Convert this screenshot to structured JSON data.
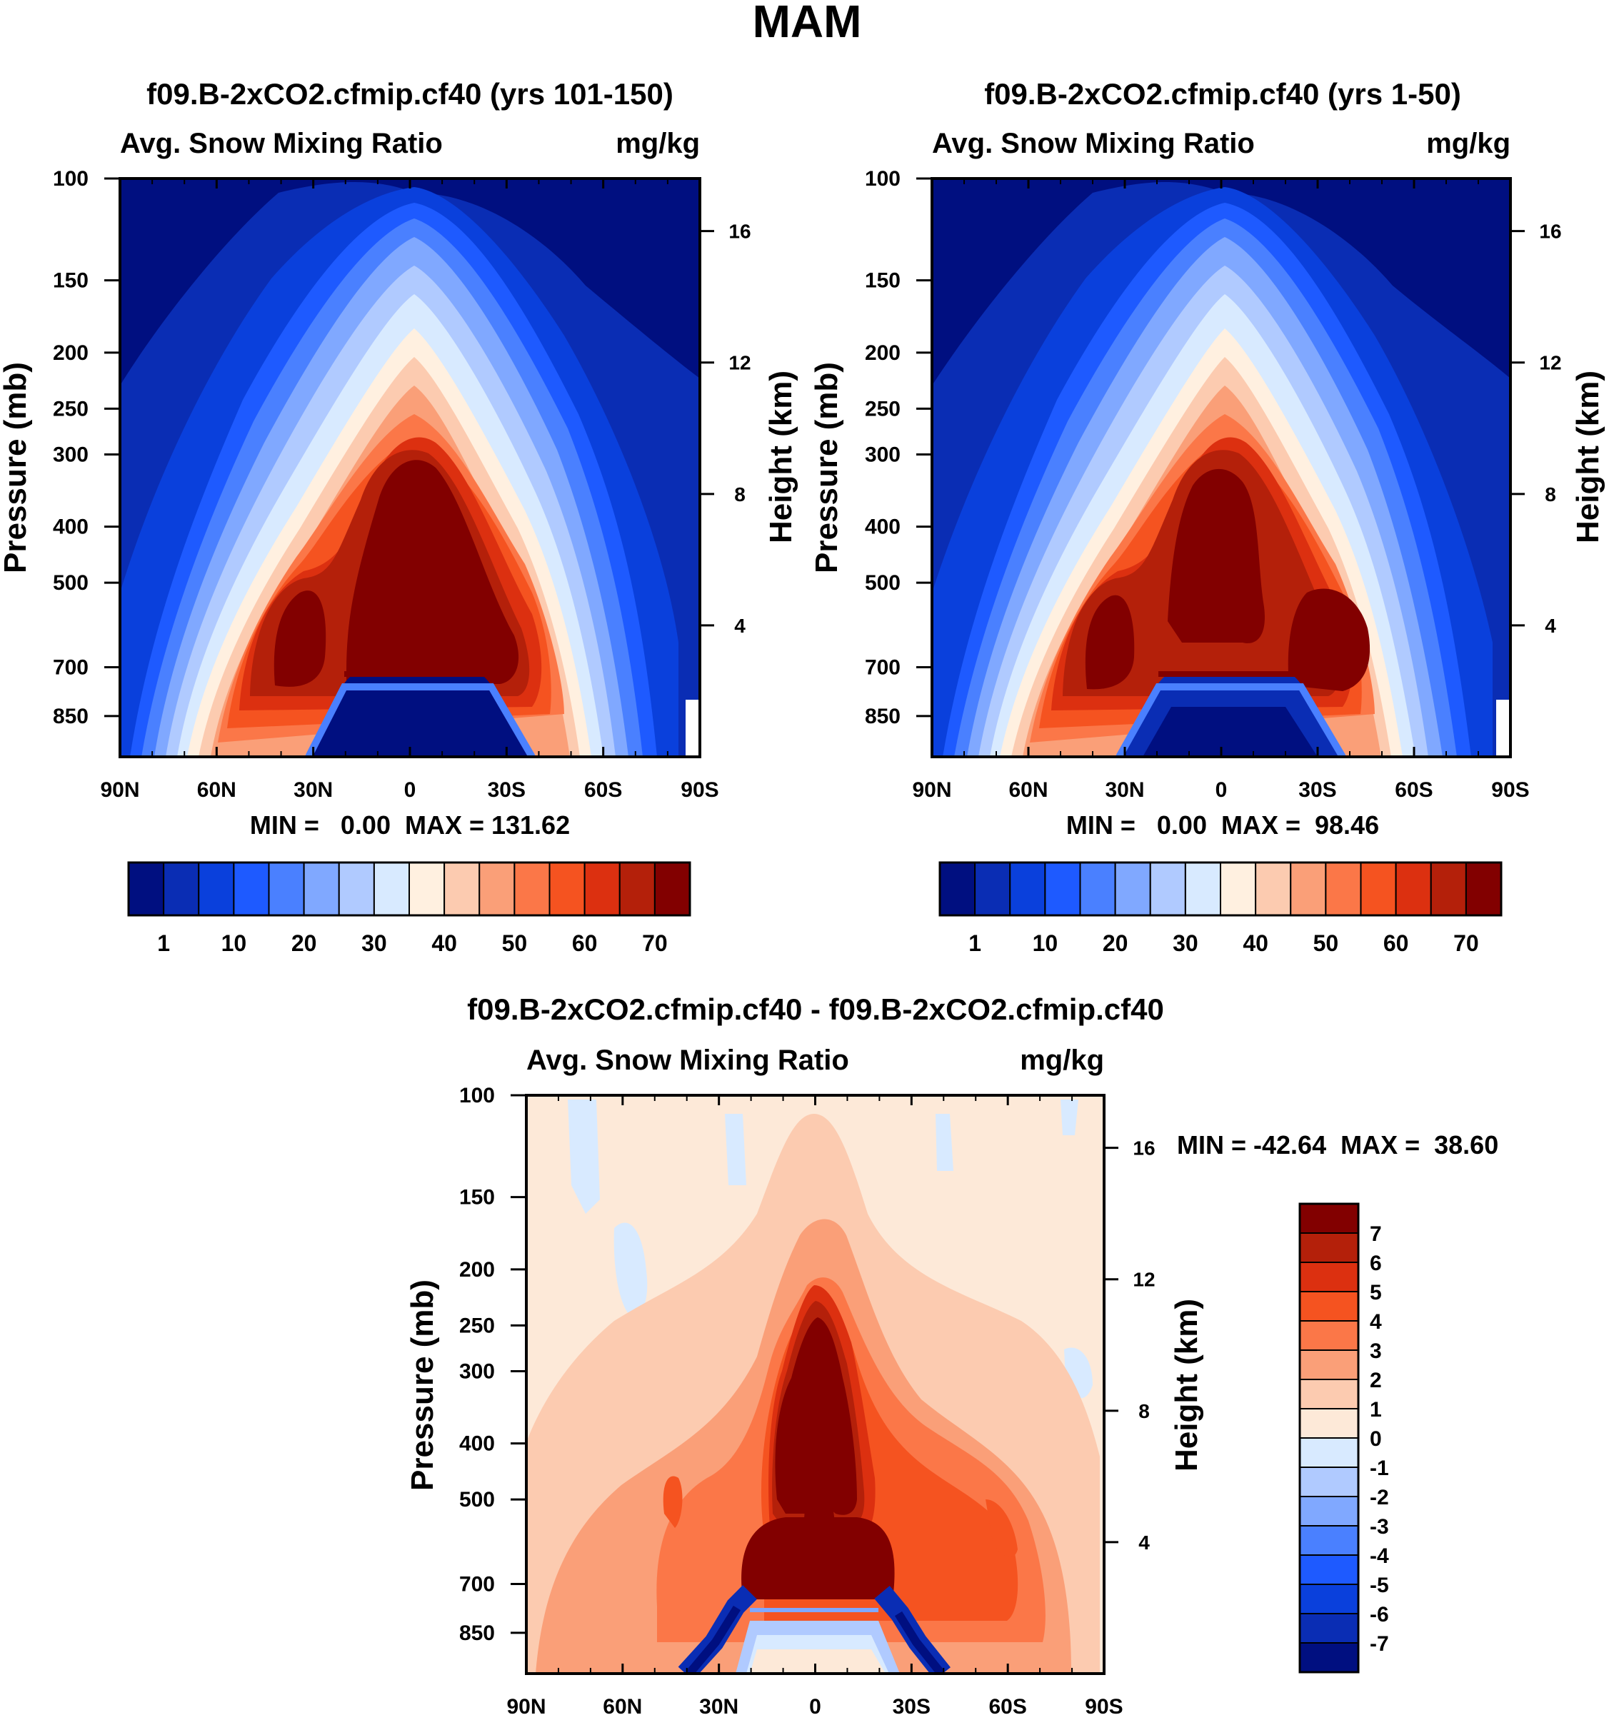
{
  "figure_title": "MAM",
  "colors": {
    "abs_scale": [
      "#000f80",
      "#0a2db4",
      "#0a40dc",
      "#1e5aff",
      "#4a80ff",
      "#80a8ff",
      "#b0caff",
      "#d8eaff",
      "#fff0e0",
      "#fccbb0",
      "#fa9f78",
      "#fb7748",
      "#f55320",
      "#dc3010",
      "#b4200a",
      "#820000"
    ],
    "diff_scale": [
      "#000f80",
      "#0a2db4",
      "#0a40dc",
      "#1e5aff",
      "#4a80ff",
      "#80a8ff",
      "#b0caff",
      "#d8eaff",
      "#fde9d8",
      "#fccbb0",
      "#fa9f78",
      "#fb7748",
      "#f55320",
      "#dc3010",
      "#b4200a",
      "#820000"
    ]
  },
  "chart_data": [
    {
      "type": "heatmap",
      "title": "f09.B-2xCO2.cfmip.cf40 (yrs 101-150)",
      "left_label": "Avg. Snow Mixing Ratio",
      "right_label": "mg/kg",
      "ylabel": "Pressure (mb)",
      "y2label": "Height (km)",
      "x_ticks": [
        "90N",
        "60N",
        "30N",
        "0",
        "30S",
        "60S",
        "90S"
      ],
      "y_ticks": [
        "100",
        "150",
        "200",
        "250",
        "300",
        "400",
        "500",
        "700",
        "850"
      ],
      "y2_ticks": [
        "16",
        "12",
        "8",
        "4"
      ],
      "stats": "MIN =   0.00  MAX = 131.62",
      "colorbar_labels": [
        "1",
        "10",
        "20",
        "30",
        "40",
        "50",
        "60",
        "70"
      ]
    },
    {
      "type": "heatmap",
      "title": "f09.B-2xCO2.cfmip.cf40 (yrs 1-50)",
      "left_label": "Avg. Snow Mixing Ratio",
      "right_label": "mg/kg",
      "ylabel": "Pressure (mb)",
      "y2label": "Height (km)",
      "x_ticks": [
        "90N",
        "60N",
        "30N",
        "0",
        "30S",
        "60S",
        "90S"
      ],
      "y_ticks": [
        "100",
        "150",
        "200",
        "250",
        "300",
        "400",
        "500",
        "700",
        "850"
      ],
      "y2_ticks": [
        "16",
        "12",
        "8",
        "4"
      ],
      "stats": "MIN =   0.00  MAX =  98.46",
      "colorbar_labels": [
        "1",
        "10",
        "20",
        "30",
        "40",
        "50",
        "60",
        "70"
      ]
    },
    {
      "type": "heatmap",
      "title": "f09.B-2xCO2.cfmip.cf40 - f09.B-2xCO2.cfmip.cf40",
      "left_label": "Avg. Snow Mixing Ratio",
      "right_label": "mg/kg",
      "ylabel": "Pressure (mb)",
      "y2label": "Height (km)",
      "x_ticks": [
        "90N",
        "60N",
        "30N",
        "0",
        "30S",
        "60S",
        "90S"
      ],
      "y_ticks": [
        "100",
        "150",
        "200",
        "250",
        "300",
        "400",
        "500",
        "700",
        "850"
      ],
      "y2_ticks": [
        "16",
        "12",
        "8",
        "4"
      ],
      "stats": "MIN = -42.64  MAX =  38.60",
      "colorbar_labels": [
        "7",
        "6",
        "5",
        "4",
        "3",
        "2",
        "1",
        "0",
        "-1",
        "-2",
        "-3",
        "-4",
        "-5",
        "-6",
        "-7"
      ]
    }
  ]
}
